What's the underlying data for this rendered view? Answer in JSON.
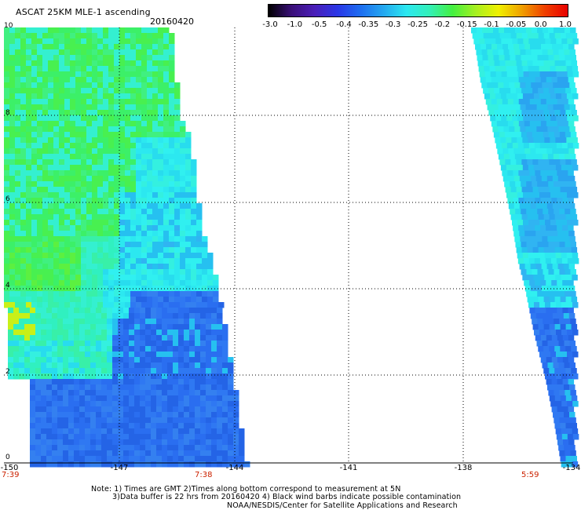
{
  "header": {
    "title": "ASCAT 25KM MLE-1 ascending",
    "date": "20160420"
  },
  "colorbar": {
    "colors": [
      "#000000",
      "#3a0f78",
      "#4a1eb8",
      "#2a36e6",
      "#1e6ef0",
      "#24a8f0",
      "#2ce8f0",
      "#33f0b8",
      "#44f040",
      "#a6f020",
      "#f0f000",
      "#f0a000",
      "#f04000",
      "#e80000"
    ],
    "labels": [
      "-3.0",
      "-1.0",
      "-0.5",
      "-0.4",
      "-0.35",
      "-0.3",
      "-0.25",
      "-0.2",
      "-0.15",
      "-0.1",
      "-0.05",
      "0.0",
      "1.0"
    ]
  },
  "map": {
    "x_range": [
      -150,
      -134
    ],
    "y_range": [
      0,
      10
    ],
    "x_ticks": [
      "-150",
      "-147",
      "-144",
      "-141",
      "-138",
      "-134"
    ],
    "y_ticks": [
      "0",
      "2",
      "4",
      "6",
      "8",
      "10"
    ],
    "times": [
      "7:39",
      "7:38",
      "5:59"
    ],
    "grid": "dotted"
  },
  "notes": [
    "Note: 1) Times are GMT 2)Times along bottom correspond to measurement at 5N",
    "3)Data buffer is 22 hrs from 20160420 4) Black wind barbs indicate possible contamination",
    "NOAA/NESDIS/Center for Satellite Applications and Research"
  ]
}
